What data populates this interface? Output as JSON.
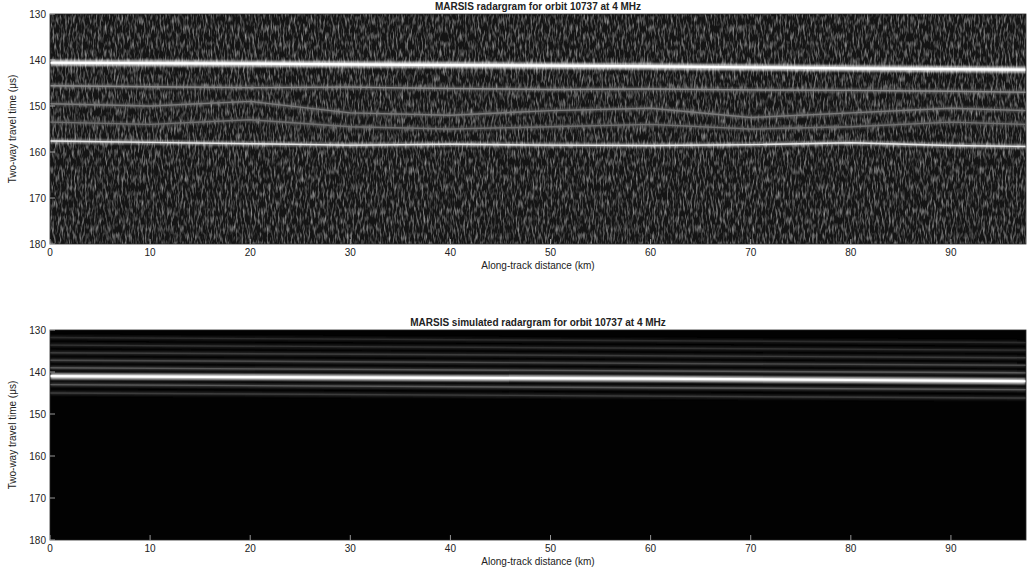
{
  "chart_data": [
    {
      "type": "radargram",
      "title": "MARSIS radargram for orbit 10737 at 4 MHz",
      "x_label": "Along-track distance (km)",
      "y_label": "Two-way travel time (μs)",
      "xlim": [
        0,
        97.5
      ],
      "ylim": [
        130,
        180
      ],
      "xticks": [
        0,
        10,
        20,
        30,
        40,
        50,
        60,
        70,
        80,
        90
      ],
      "yticks": [
        130,
        140,
        150,
        160,
        170,
        180
      ],
      "series": [
        {
          "color": "#ffffff",
          "x": [
            0,
            20,
            40,
            60,
            80,
            97.5
          ],
          "values": [
            140.6,
            140.8,
            141.1,
            141.4,
            141.8,
            142.1
          ]
        },
        {
          "color": "#8c8c8c",
          "x": [
            0,
            10,
            20,
            30,
            40,
            50,
            60,
            70,
            80,
            90,
            97.5
          ],
          "values": [
            145.6,
            145.8,
            146.0,
            145.9,
            146.2,
            146.4,
            146.3,
            146.5,
            146.6,
            146.8,
            147.0
          ]
        },
        {
          "color": "#7a7a7a",
          "x": [
            0,
            10,
            20,
            30,
            40,
            50,
            60,
            70,
            80,
            90,
            97.5
          ],
          "values": [
            149.5,
            150.0,
            149.0,
            151.5,
            152.0,
            151.0,
            150.5,
            152.5,
            151.5,
            150.5,
            151.0
          ]
        },
        {
          "color": "#707070",
          "x": [
            0,
            10,
            20,
            30,
            40,
            50,
            60,
            70,
            80,
            90,
            97.5
          ],
          "values": [
            153.5,
            154.0,
            153.0,
            154.5,
            155.0,
            154.5,
            154.0,
            155.0,
            154.5,
            153.5,
            154.0
          ]
        },
        {
          "color": "#e6e6e6",
          "x": [
            0,
            10,
            20,
            30,
            40,
            50,
            60,
            70,
            80,
            90,
            97.5
          ],
          "values": [
            157.6,
            157.9,
            158.2,
            158.5,
            158.3,
            158.5,
            158.6,
            158.4,
            158.0,
            158.6,
            158.8
          ]
        }
      ]
    },
    {
      "type": "radargram",
      "title": "MARSIS simulated radargram for orbit 10737 at 4 MHz",
      "x_label": "Along-track distance (km)",
      "y_label": "Two-way travel time (μs)",
      "xlim": [
        0,
        97.5
      ],
      "ylim": [
        130,
        180
      ],
      "xticks": [
        0,
        10,
        20,
        30,
        40,
        50,
        60,
        70,
        80,
        90
      ],
      "yticks": [
        130,
        140,
        150,
        160,
        170,
        180
      ],
      "series": [
        {
          "color": "#ffffff",
          "x": [
            0,
            20,
            40,
            60,
            80,
            97.5
          ],
          "values": [
            141.0,
            141.2,
            141.4,
            141.6,
            141.9,
            142.2
          ]
        },
        {
          "color": "#5a5a5a",
          "x": [
            0,
            97.5
          ],
          "values": [
            139.0,
            140.2
          ]
        },
        {
          "color": "#4a4a4a",
          "x": [
            0,
            97.5
          ],
          "values": [
            137.2,
            138.4
          ]
        },
        {
          "color": "#3c3c3c",
          "x": [
            0,
            97.5
          ],
          "values": [
            135.4,
            136.6
          ]
        },
        {
          "color": "#333333",
          "x": [
            0,
            97.5
          ],
          "values": [
            133.6,
            134.8
          ]
        },
        {
          "color": "#2c2c2c",
          "x": [
            0,
            97.5
          ],
          "values": [
            131.8,
            133.0
          ]
        },
        {
          "color": "#5a5a5a",
          "x": [
            0,
            97.5
          ],
          "values": [
            143.0,
            144.2
          ]
        },
        {
          "color": "#3c3c3c",
          "x": [
            0,
            97.5
          ],
          "values": [
            145.0,
            146.2
          ]
        }
      ]
    }
  ]
}
